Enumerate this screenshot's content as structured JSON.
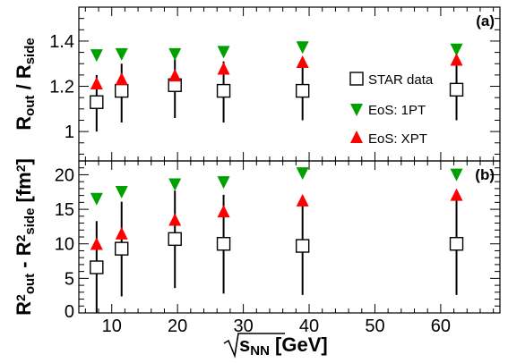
{
  "chart_data": [
    {
      "type": "scatter",
      "panel_label": "(a)",
      "ylabel": "R_out / R_side",
      "xlim": [
        5,
        69
      ],
      "ylim": [
        0.87,
        1.55
      ],
      "xticks": [
        10,
        20,
        30,
        40,
        50,
        60
      ],
      "yticks": [
        1,
        1.2,
        1.4
      ],
      "ytick_labels": [
        "1",
        "1.2",
        "1.4"
      ],
      "legend_position": "center-right",
      "series": [
        {
          "name": "STAR data",
          "marker": "open-square",
          "color": "#000000",
          "x": [
            7.7,
            11.5,
            19.6,
            27,
            39,
            62.4
          ],
          "y": [
            1.13,
            1.18,
            1.205,
            1.18,
            1.18,
            1.185
          ],
          "err_low": [
            1.0,
            1.04,
            1.06,
            1.04,
            1.05,
            1.05
          ],
          "err_high": [
            1.25,
            1.3,
            1.32,
            1.31,
            1.31,
            1.31
          ]
        },
        {
          "name": "EoS: 1PT",
          "marker": "down-triangle",
          "color": "#00a000",
          "x": [
            7.7,
            11.5,
            19.6,
            27,
            39,
            62.4
          ],
          "y": [
            1.34,
            1.345,
            1.345,
            1.355,
            1.375,
            1.365
          ]
        },
        {
          "name": "EoS: XPT",
          "marker": "up-triangle",
          "color": "#ff0000",
          "x": [
            7.7,
            11.5,
            19.6,
            27,
            39,
            62.4
          ],
          "y": [
            1.21,
            1.23,
            1.245,
            1.275,
            1.305,
            1.315
          ]
        }
      ]
    },
    {
      "type": "scatter",
      "panel_label": "(b)",
      "ylabel": "R²out - R²side [fm²]",
      "xlabel": "√sNN [GeV]",
      "xlim": [
        5,
        69
      ],
      "ylim": [
        0,
        22
      ],
      "xticks": [
        10,
        20,
        30,
        40,
        50,
        60
      ],
      "yticks": [
        0,
        5,
        10,
        15,
        20
      ],
      "series": [
        {
          "name": "STAR data",
          "marker": "open-square",
          "color": "#000000",
          "x": [
            7.7,
            11.5,
            19.6,
            27,
            39,
            62.4
          ],
          "y": [
            6.6,
            9.3,
            10.7,
            10.0,
            9.7,
            10.0
          ],
          "err_low": [
            0,
            2.4,
            3.6,
            2.8,
            2.6,
            2.6
          ],
          "err_high": [
            13.3,
            16.1,
            17.7,
            17.1,
            16.7,
            17.1
          ]
        },
        {
          "name": "EoS: 1PT",
          "marker": "down-triangle",
          "color": "#00a000",
          "x": [
            7.7,
            11.5,
            19.6,
            27,
            39,
            62.4
          ],
          "y": [
            16.6,
            17.6,
            18.7,
            19.0,
            20.3,
            20.1
          ]
        },
        {
          "name": "EoS: XPT",
          "marker": "up-triangle",
          "color": "#ff0000",
          "x": [
            7.7,
            11.5,
            19.6,
            27,
            39,
            62.4
          ],
          "y": [
            9.9,
            11.4,
            13.4,
            14.6,
            16.2,
            17.0
          ]
        }
      ]
    }
  ]
}
